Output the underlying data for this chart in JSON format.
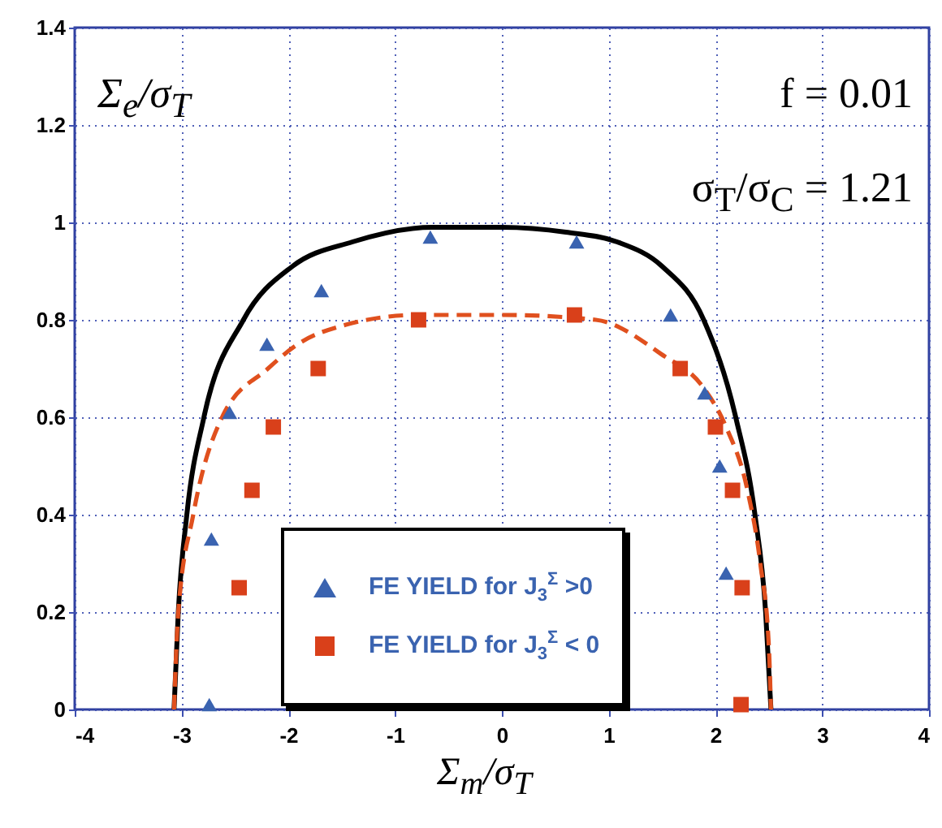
{
  "chart_data": {
    "type": "scatter",
    "xlabel": "Σ$_{m}$/σ$_{T}$",
    "ylabel": "Σ$_{e}$/σ$_{T}$",
    "annotations": [
      "f = 0.01",
      "σ$_{T}$/σ$_{C}$ = 1.21"
    ],
    "xlim": [
      -4,
      4
    ],
    "xticks": [
      -4,
      -3,
      -2,
      -1,
      0,
      1,
      2,
      3,
      4
    ],
    "ylim": [
      0,
      1.4
    ],
    "yticks": [
      0,
      0.2,
      0.4,
      0.6,
      0.8,
      1,
      1.2,
      1.4
    ],
    "grid": true,
    "legend": "bottom",
    "series": [
      {
        "type": "line",
        "color": "#000000",
        "line_style": "solid",
        "marker": "none",
        "x": [
          -3.07,
          -3.03,
          -2.95,
          -2.79,
          -2.42,
          -1.96,
          -1.4,
          -0.65,
          0,
          0.6,
          1.08,
          1.5,
          1.89,
          2.19,
          2.37,
          2.47,
          2.52
        ],
        "values": [
          0,
          0.2,
          0.4,
          0.6,
          0.8,
          0.91,
          0.96,
          0.99,
          0.99,
          0.98,
          0.96,
          0.91,
          0.8,
          0.6,
          0.4,
          0.2,
          0
        ]
      },
      {
        "type": "line",
        "color": "#e0501e",
        "line_style": "dashed",
        "marker": "none",
        "x": [
          -3.07,
          -3.03,
          -2.89,
          -2.62,
          -2.19,
          -1.91,
          -1.46,
          -0.79,
          0,
          0.88,
          1.49,
          1.89,
          2.1,
          2.3,
          2.42,
          2.5,
          2.52
        ],
        "values": [
          0,
          0.2,
          0.4,
          0.6,
          0.7,
          0.75,
          0.79,
          0.81,
          0.81,
          0.8,
          0.73,
          0.66,
          0.58,
          0.45,
          0.3,
          0.13,
          0
        ]
      },
      {
        "name": "FE YIELD for J$_{3}$$^{Σ}$ >0",
        "color": "#3a63b0",
        "marker": "triangle",
        "x": [
          -2.74,
          -2.72,
          -2.55,
          -2.2,
          -1.69,
          -0.67,
          0.7,
          1.58,
          1.9,
          2.04,
          2.1
        ],
        "values": [
          0.01,
          0.35,
          0.61,
          0.75,
          0.86,
          0.97,
          0.96,
          0.81,
          0.65,
          0.5,
          0.28
        ]
      },
      {
        "name": "FE YIELD for J$_{3}$$^{Σ}$ < 0",
        "color": "#d9401a",
        "marker": "square",
        "x": [
          -2.46,
          -2.34,
          -2.14,
          -1.72,
          -0.78,
          0.68,
          1.67,
          2,
          2.16,
          2.25,
          2.24
        ],
        "values": [
          0.25,
          0.45,
          0.58,
          0.7,
          0.8,
          0.81,
          0.7,
          0.58,
          0.45,
          0.25,
          0.01
        ]
      }
    ]
  }
}
